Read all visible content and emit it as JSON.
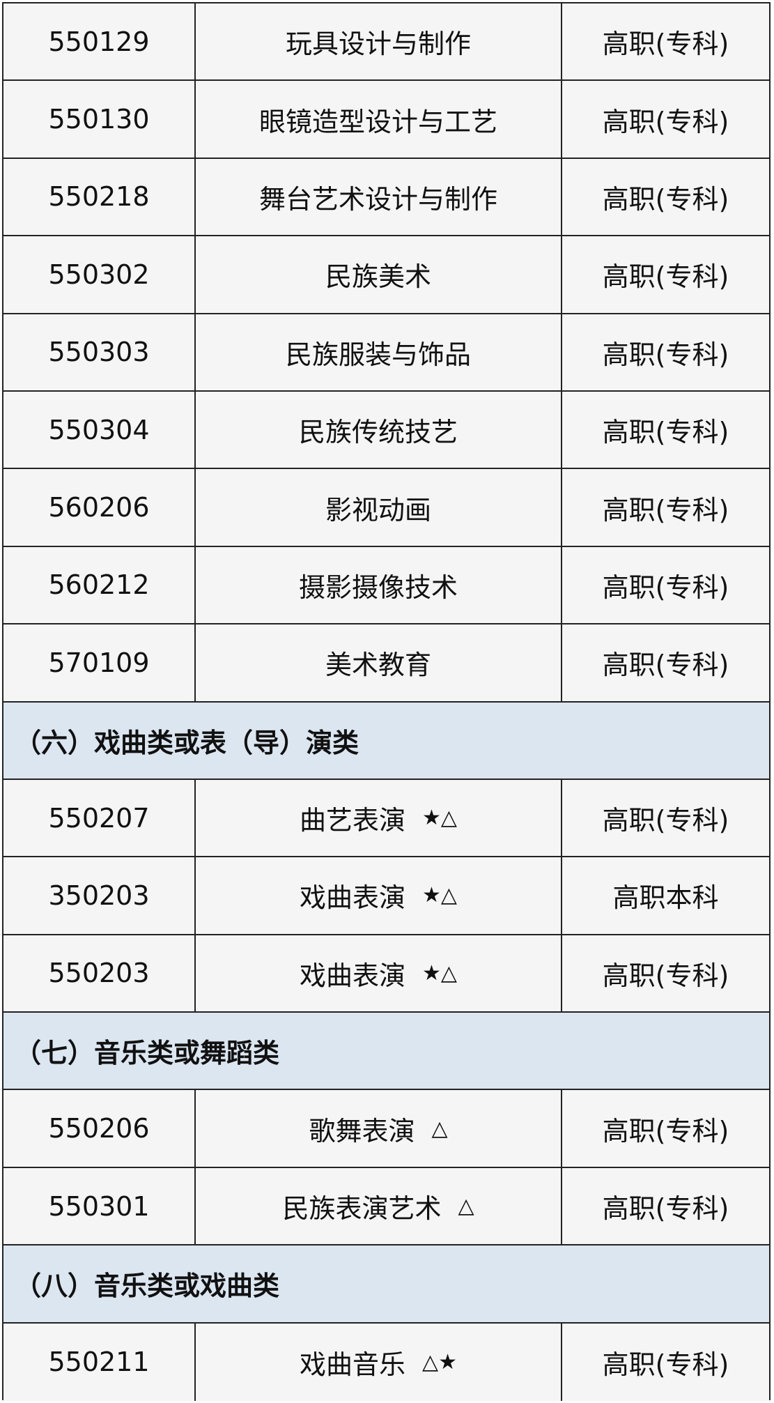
{
  "table": {
    "rows": [
      {
        "code": "550129",
        "name": "玩具设计与制作",
        "level": "高职(专科)"
      },
      {
        "code": "550130",
        "name": "眼镜造型设计与工艺",
        "level": "高职(专科)"
      },
      {
        "code": "550218",
        "name": "舞台艺术设计与制作",
        "level": "高职(专科)"
      },
      {
        "code": "550302",
        "name": "民族美术",
        "level": "高职(专科)"
      },
      {
        "code": "550303",
        "name": "民族服装与饰品",
        "level": "高职(专科)"
      },
      {
        "code": "550304",
        "name": "民族传统技艺",
        "level": "高职(专科)"
      },
      {
        "code": "560206",
        "name": "影视动画",
        "level": "高职(专科)"
      },
      {
        "code": "560212",
        "name": "摄影摄像技术",
        "level": "高职(专科)"
      },
      {
        "code": "570109",
        "name": "美术教育",
        "level": "高职(专科)"
      },
      {
        "section": "（六）戏曲类或表（导）演类"
      },
      {
        "code": "550207",
        "name": "曲艺表演",
        "mark": "★△",
        "level": "高职(专科)"
      },
      {
        "code": "350203",
        "name": "戏曲表演",
        "mark": "★△",
        "level": "高职本科"
      },
      {
        "code": "550203",
        "name": "戏曲表演",
        "mark": "★△",
        "level": "高职(专科)"
      },
      {
        "section": "（七）音乐类或舞蹈类"
      },
      {
        "code": "550206",
        "name": "歌舞表演",
        "mark": "△",
        "level": "高职(专科)"
      },
      {
        "code": "550301",
        "name": "民族表演艺术",
        "mark": "△",
        "level": "高职(专科)"
      },
      {
        "section": "（八）音乐类或戏曲类"
      },
      {
        "code": "550211",
        "name": "戏曲音乐",
        "mark": "△★",
        "level": "高职(专科)"
      }
    ]
  }
}
